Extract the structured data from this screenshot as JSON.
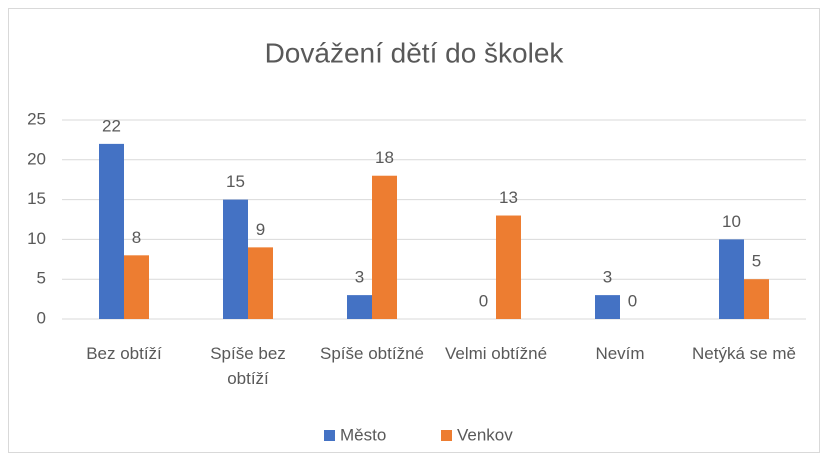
{
  "chart_data": {
    "type": "bar",
    "title": "Dovážení dětí do školek",
    "categories": [
      "Bez obtíží",
      "Spíše bez obtíží",
      "Spíše obtížné",
      "Velmi obtížné",
      "Nevím",
      "Netýká se mě"
    ],
    "series": [
      {
        "name": "Město",
        "color": "#4472c4",
        "values": [
          22,
          15,
          3,
          0,
          3,
          10
        ]
      },
      {
        "name": "Venkov",
        "color": "#ed7d31",
        "values": [
          8,
          9,
          18,
          13,
          0,
          5
        ]
      }
    ],
    "ylim": [
      0,
      25
    ],
    "yticks": [
      0,
      5,
      10,
      15,
      20,
      25
    ],
    "grid": true,
    "legend": "bottom"
  }
}
